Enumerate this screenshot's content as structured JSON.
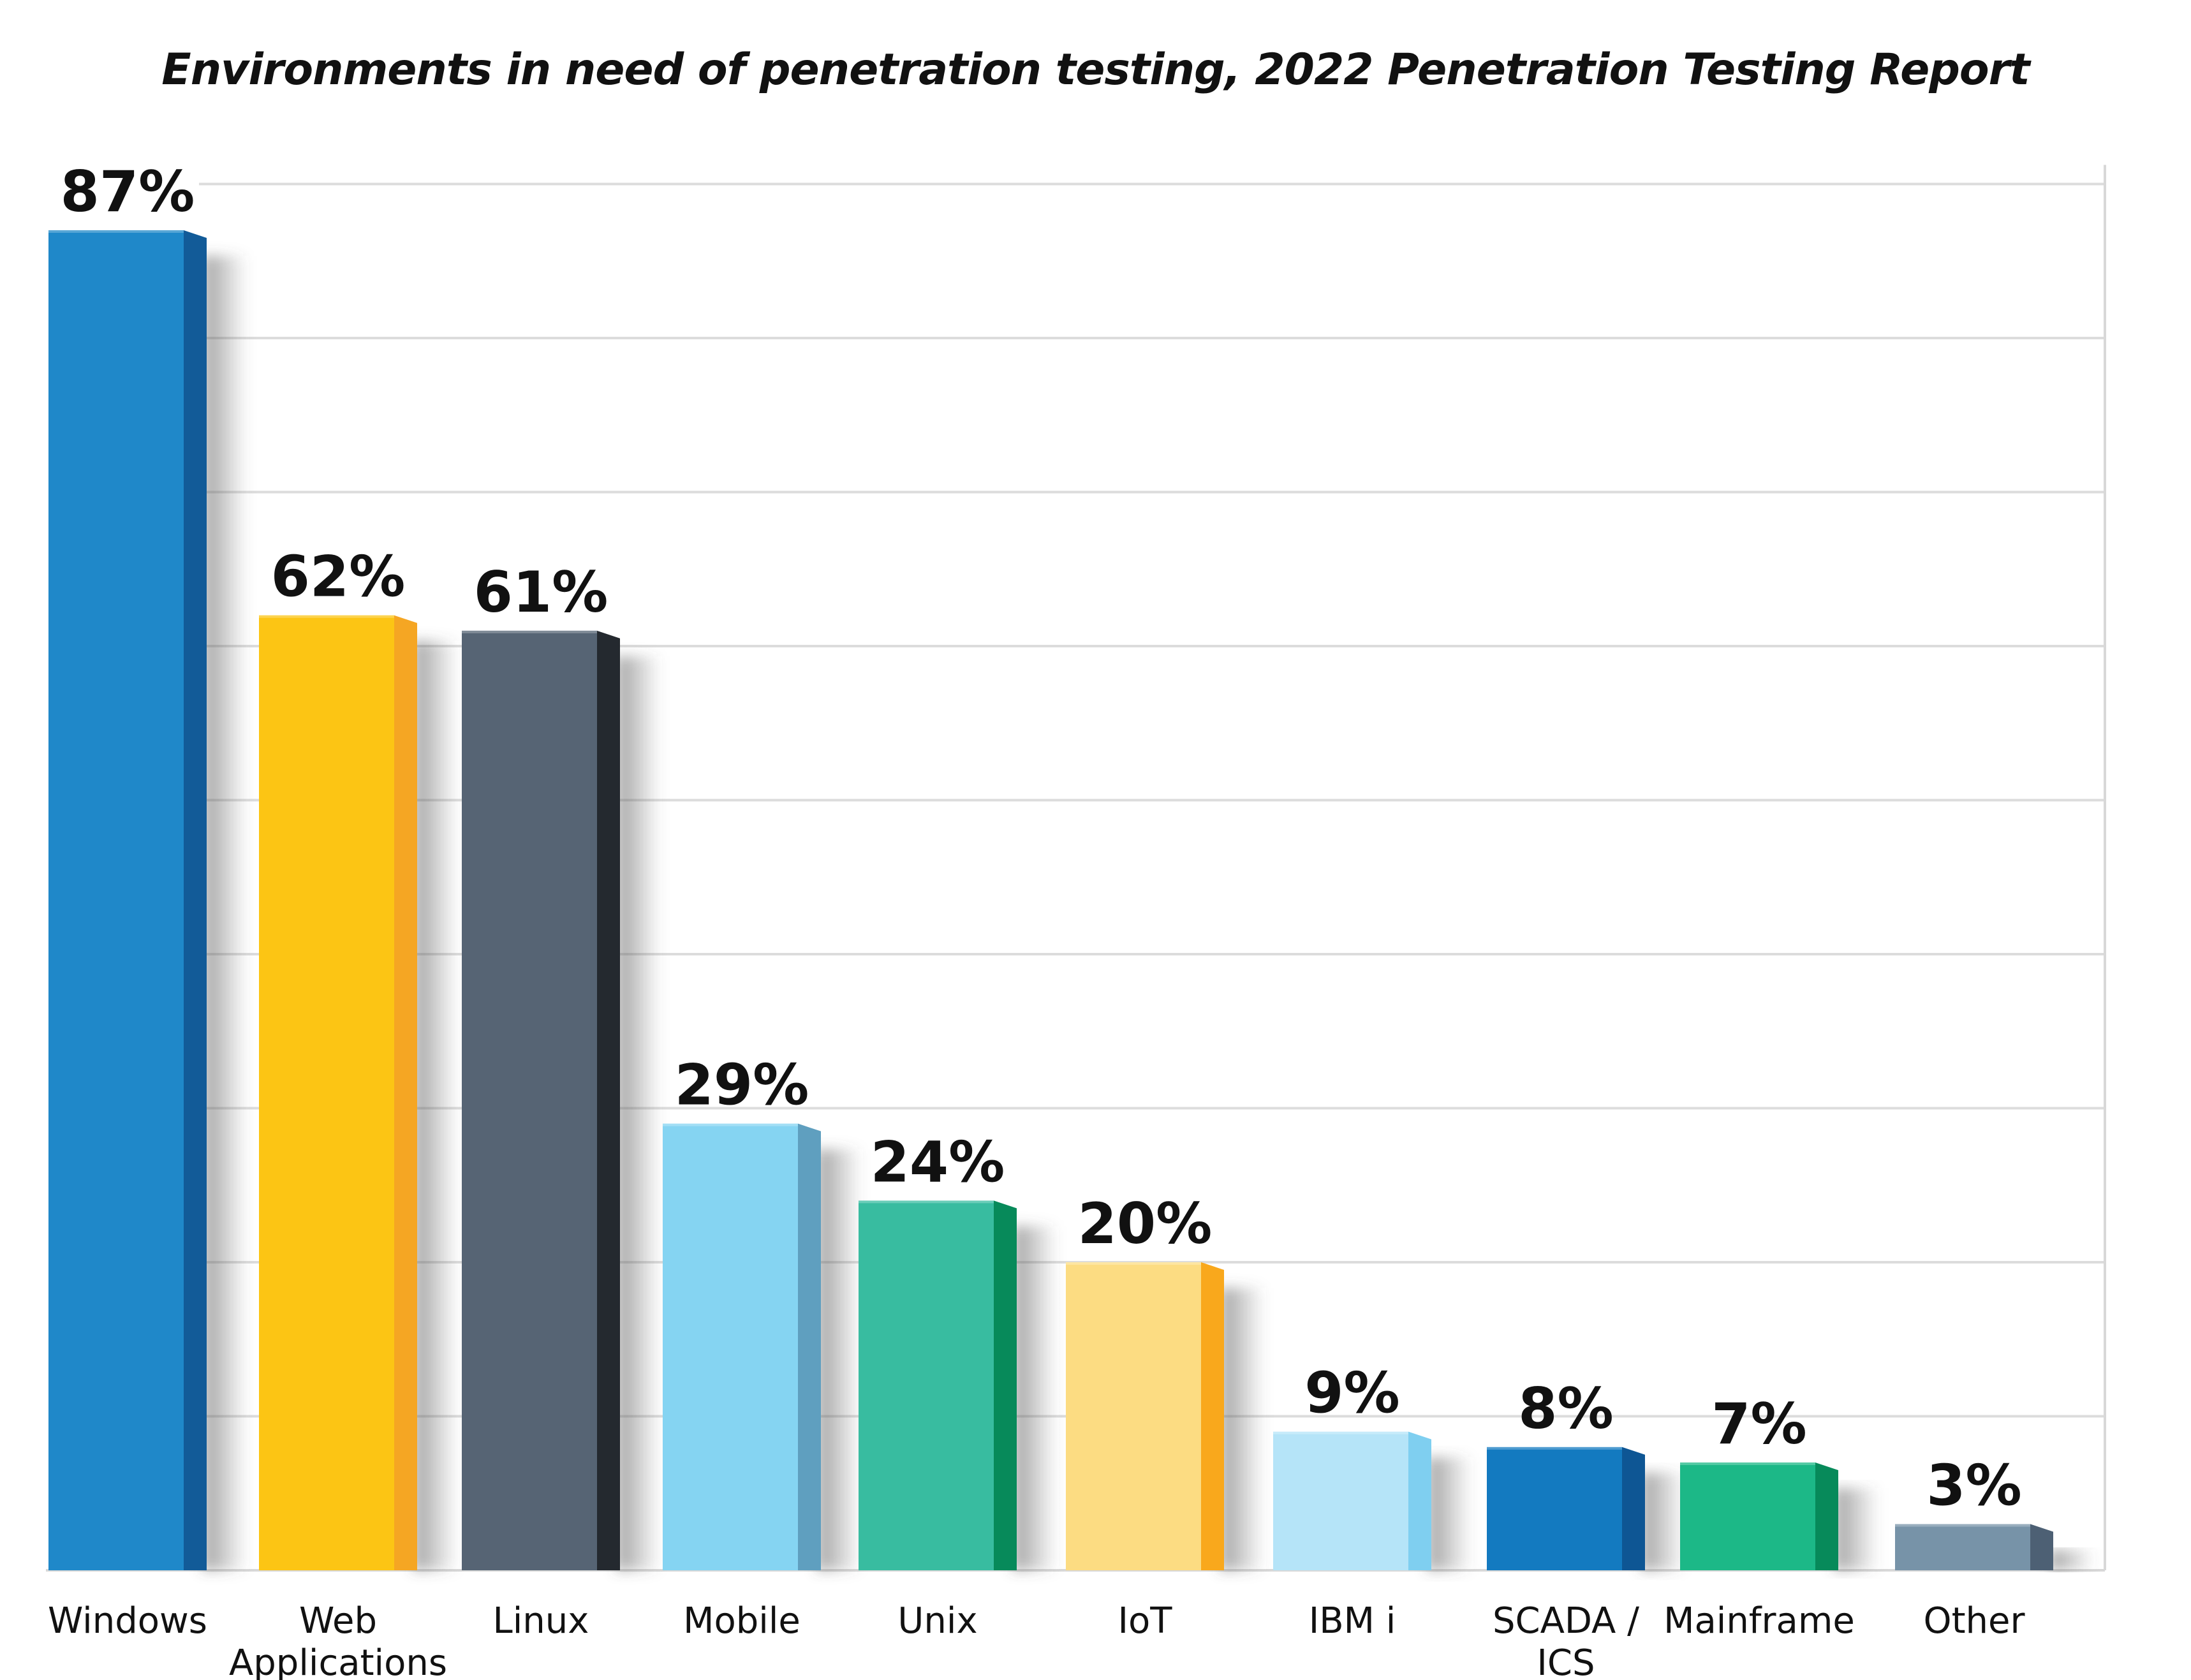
{
  "chart_data": {
    "type": "bar",
    "title": "Environments in need of penetration testing, 2022 Penetration Testing Report",
    "categories": [
      "Windows",
      "Web Applications",
      "Linux",
      "Mobile",
      "Unix",
      "IoT",
      "IBM i",
      "SCADA / ICS",
      "Mainframe",
      "Other"
    ],
    "category_lines": [
      [
        "Windows"
      ],
      [
        "Web",
        "Applications"
      ],
      [
        "Linux"
      ],
      [
        "Mobile"
      ],
      [
        "Unix"
      ],
      [
        "IoT"
      ],
      [
        "IBM i"
      ],
      [
        "SCADA /",
        "ICS"
      ],
      [
        "Mainframe"
      ],
      [
        "Other"
      ]
    ],
    "values": [
      87,
      62,
      61,
      29,
      24,
      20,
      9,
      8,
      7,
      3
    ],
    "value_labels": [
      "87%",
      "62%",
      "61%",
      "29%",
      "24%",
      "20%",
      "9%",
      "8%",
      "7%",
      "3%"
    ],
    "colors": [
      {
        "front": "#1f88c9",
        "side": "#125b98"
      },
      {
        "front": "#fcc514",
        "side": "#f5a623"
      },
      {
        "front": "#566474",
        "side": "#24292f"
      },
      {
        "front": "#85d4f2",
        "side": "#5f9fbf"
      },
      {
        "front": "#38bca0",
        "side": "#078a5a"
      },
      {
        "front": "#fcdc82",
        "side": "#f9a81c"
      },
      {
        "front": "#b5e4f8",
        "side": "#7fcff0"
      },
      {
        "front": "#137ac0",
        "side": "#0e5694"
      },
      {
        "front": "#1cb887",
        "side": "#078a5a"
      },
      {
        "front": "#7793a8",
        "side": "#4d6074"
      }
    ],
    "ylim": [
      0,
      90
    ],
    "gridlines": true,
    "xlabel": "",
    "ylabel": ""
  }
}
